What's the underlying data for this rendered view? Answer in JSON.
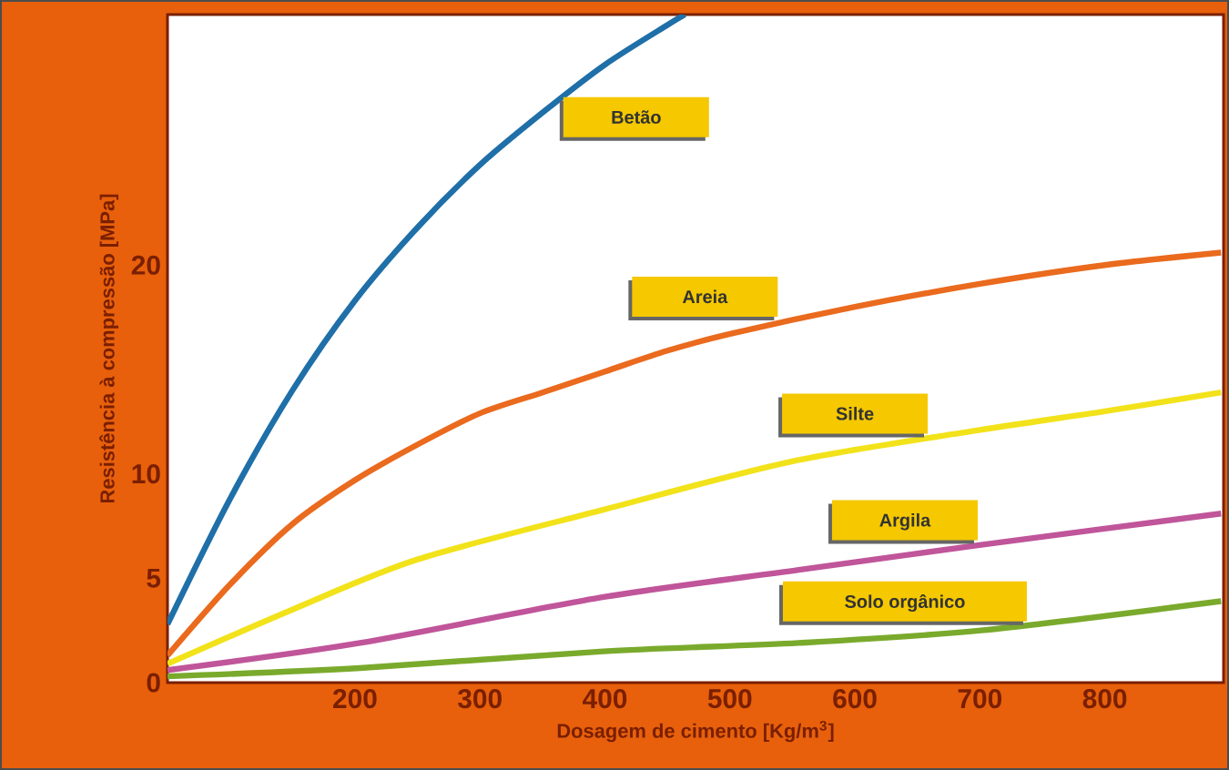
{
  "chart_data": {
    "type": "line",
    "xlabel": "Dosagem de cimento [Kg/m$^{3}$]",
    "ylabel": "Resistência à compressão [MPa]",
    "xlim": [
      50,
      895
    ],
    "ylim": [
      0,
      32
    ],
    "xticks": [
      200,
      300,
      400,
      500,
      600,
      700,
      800
    ],
    "yticks": [
      0,
      5,
      10,
      20
    ],
    "series": [
      {
        "name": "Betão",
        "color": "#1f6fa8",
        "x": [
          50,
          100,
          150,
          200,
          250,
          300,
          350,
          400,
          450,
          464
        ],
        "values": [
          2.8,
          8.8,
          14.0,
          18.3,
          21.8,
          24.8,
          27.3,
          29.6,
          31.5,
          32.0
        ]
      },
      {
        "name": "Areia",
        "color": "#ea6a1e",
        "x": [
          50,
          100,
          150,
          200,
          250,
          300,
          350,
          400,
          450,
          500,
          600,
          700,
          800,
          893
        ],
        "values": [
          1.3,
          4.7,
          7.6,
          9.7,
          11.4,
          12.9,
          13.9,
          14.9,
          15.9,
          16.7,
          18.0,
          19.1,
          20.0,
          20.6
        ]
      },
      {
        "name": "Silte",
        "color": "#f2e21a",
        "x": [
          50,
          150,
          250,
          400,
          550,
          700,
          800,
          893
        ],
        "values": [
          0.9,
          3.5,
          5.9,
          8.3,
          10.6,
          12.1,
          13.0,
          13.9
        ]
      },
      {
        "name": "Argila",
        "color": "#c0559a",
        "x": [
          50,
          204,
          399,
          555,
          701,
          893
        ],
        "values": [
          0.6,
          1.9,
          4.1,
          5.4,
          6.6,
          8.1
        ]
      },
      {
        "name": "Solo orgânico",
        "color": "#7aaa2c",
        "x": [
          50,
          204,
          399,
          555,
          701,
          893
        ],
        "values": [
          0.3,
          0.7,
          1.5,
          1.9,
          2.5,
          3.9
        ]
      }
    ]
  }
}
